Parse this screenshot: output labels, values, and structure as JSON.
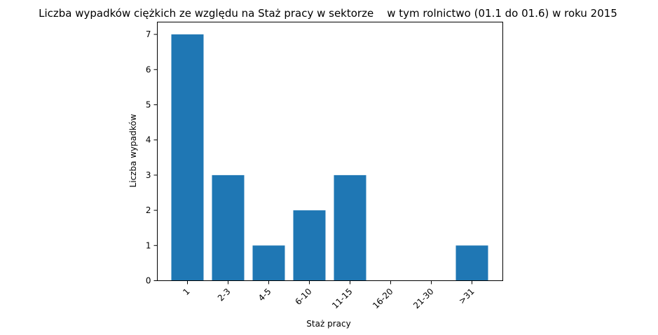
{
  "chart_data": {
    "type": "bar",
    "title": "Liczba wypadków ciężkich ze względu na Staż pracy w sektorze    w tym rolnictwo (01.1 do 01.6) w roku 2015",
    "xlabel": "Staż pracy",
    "ylabel": "Liczba wypadków",
    "categories": [
      "1",
      "2-3",
      "4-5",
      "6-10",
      "11-15",
      "16-20",
      "21-30",
      ">31"
    ],
    "values": [
      7,
      3,
      1,
      2,
      3,
      0,
      0,
      1
    ],
    "ylim": [
      0,
      7.35
    ],
    "yticks": [
      0,
      1,
      2,
      3,
      4,
      5,
      6,
      7
    ],
    "grid": false,
    "bar_color": "#1f77b4"
  }
}
